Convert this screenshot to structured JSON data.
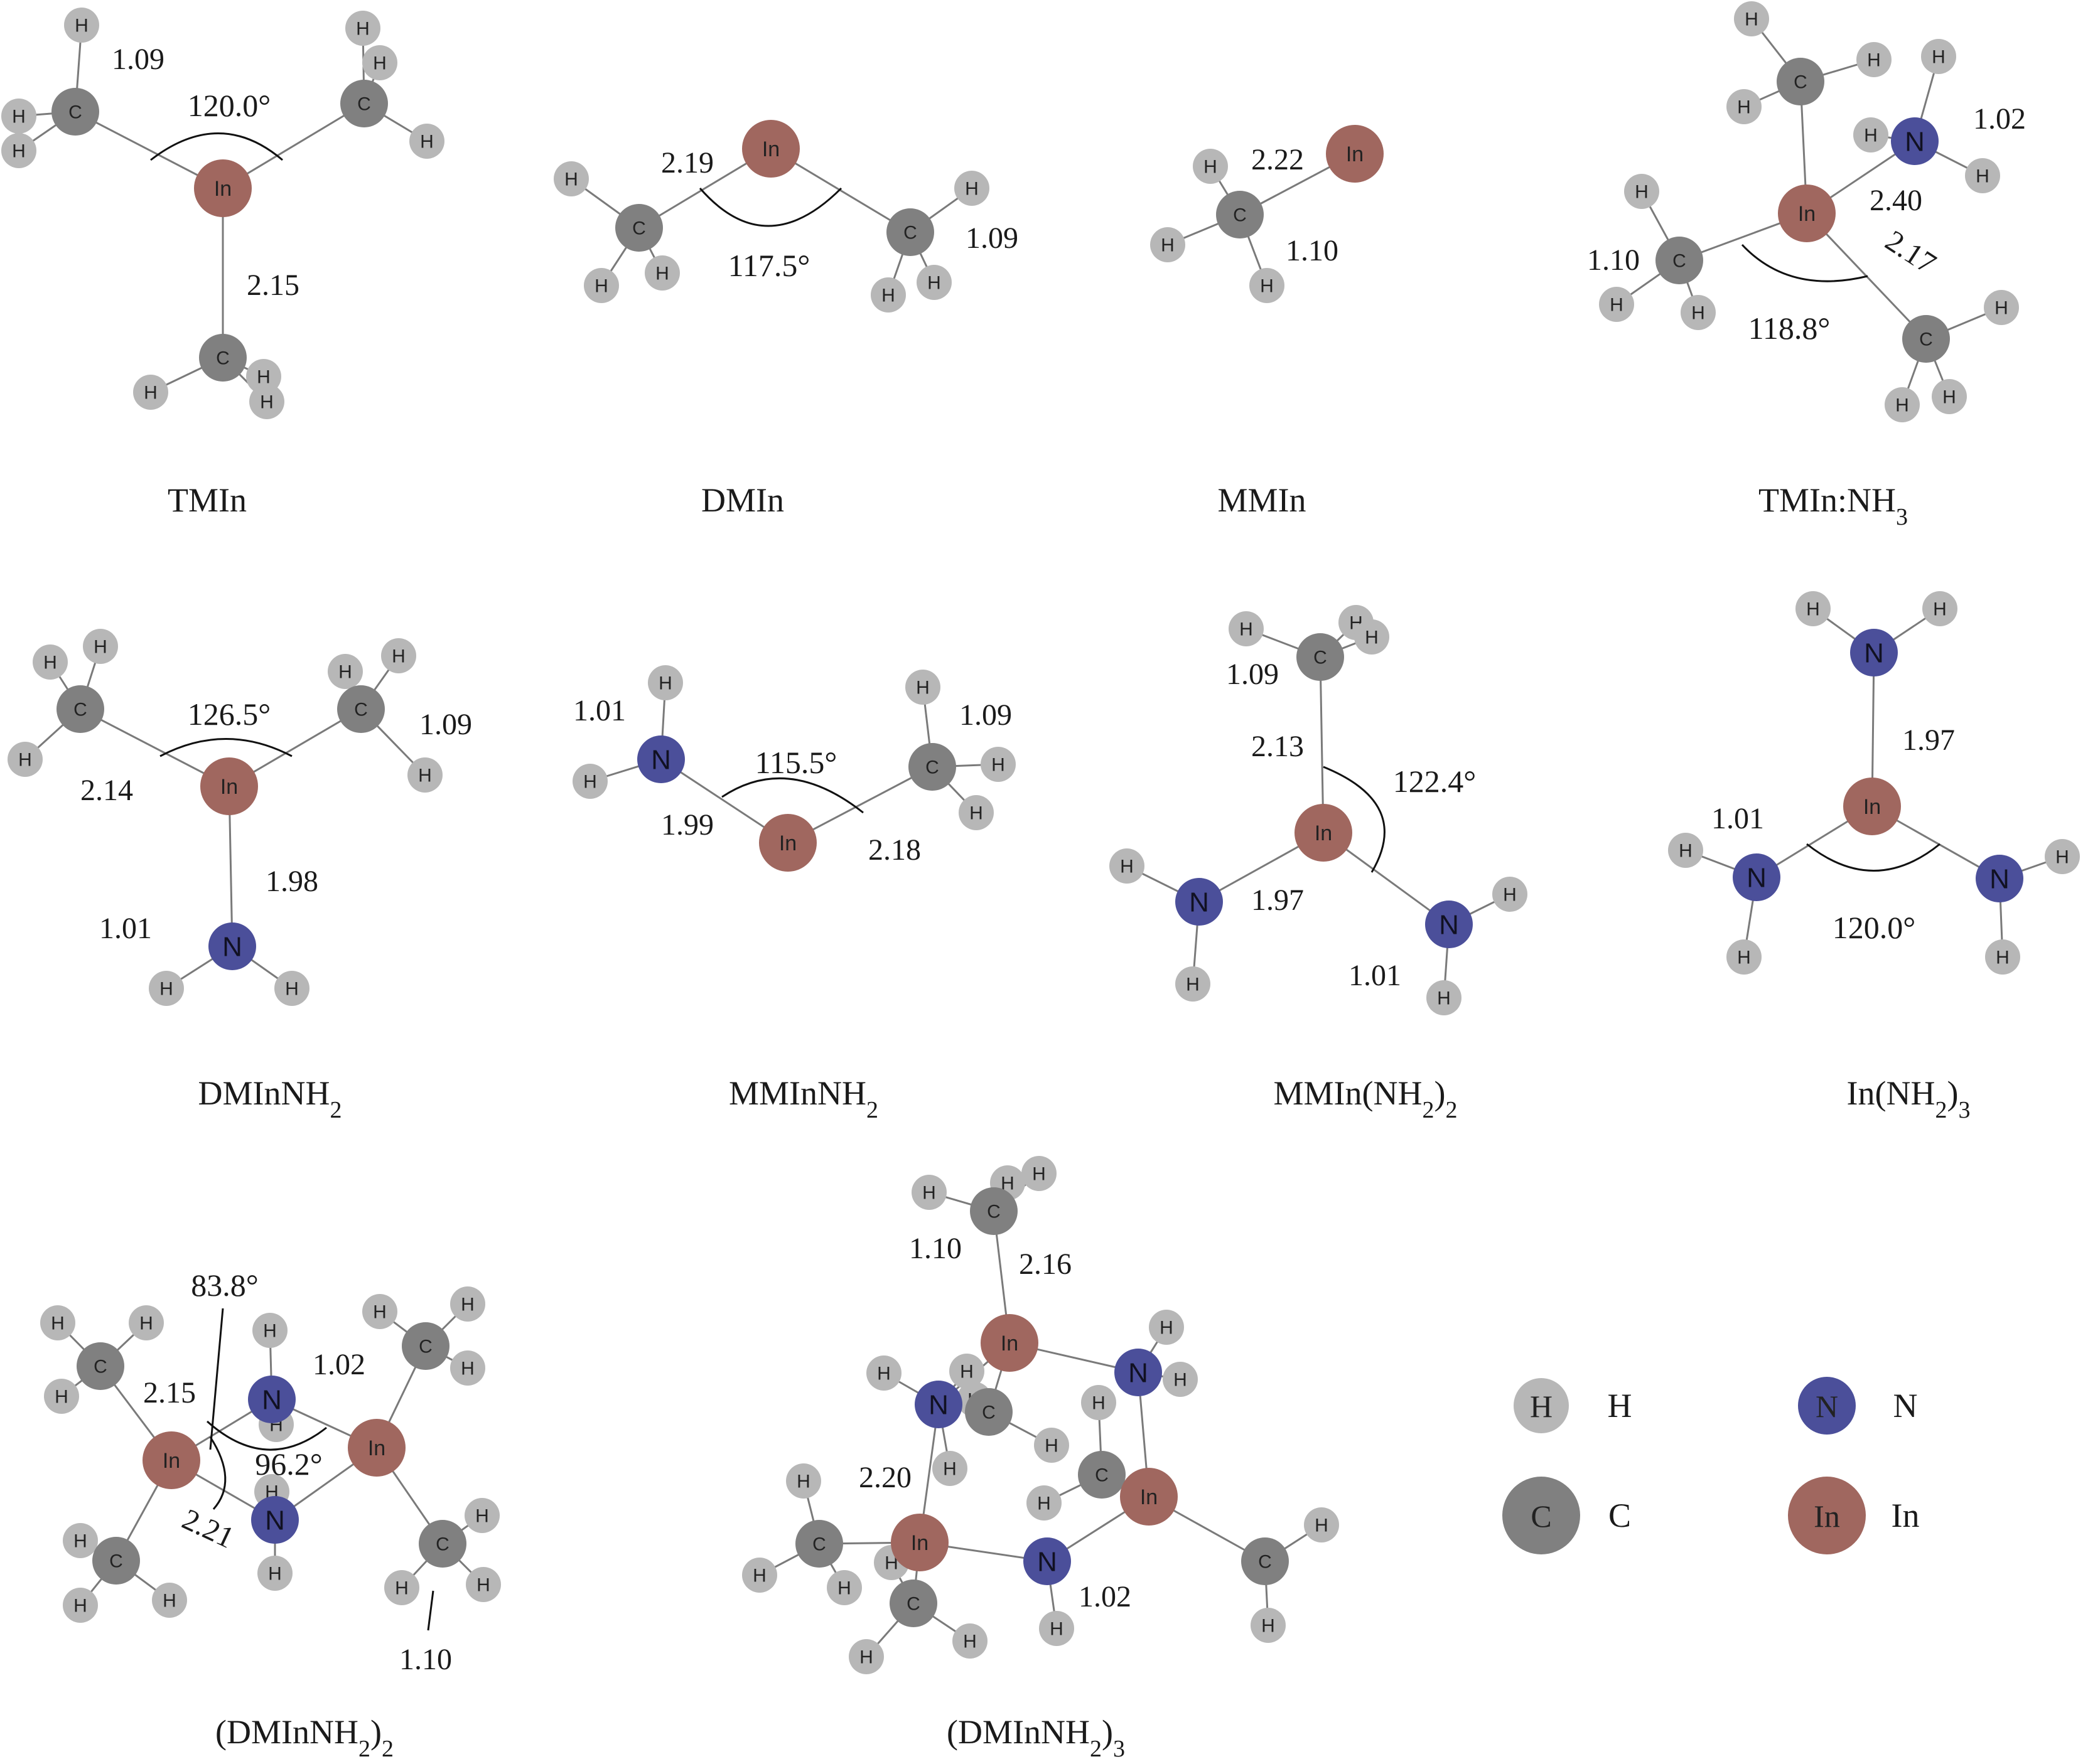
{
  "colors": {
    "H": "#b7b7b7",
    "C": "#808080",
    "N": "#4b4f9a",
    "In": "#a0675f",
    "bond": "#7a7a7a",
    "text": "#1a1a1a"
  },
  "element_symbols": {
    "H": "H",
    "C": "C",
    "N": "N",
    "In": "In"
  },
  "molecules": [
    {
      "id": "tmin",
      "name": "TMIn",
      "name_sub": "",
      "name_suffix": "",
      "name_sub2": "",
      "lengths": [
        "1.09",
        "2.15"
      ],
      "angles": [
        "120.0°"
      ]
    },
    {
      "id": "dmin",
      "name": "DMIn",
      "name_sub": "",
      "name_suffix": "",
      "name_sub2": "",
      "lengths": [
        "2.19",
        "1.09"
      ],
      "angles": [
        "117.5°"
      ]
    },
    {
      "id": "mmin",
      "name": "MMIn",
      "name_sub": "",
      "name_suffix": "",
      "name_sub2": "",
      "lengths": [
        "2.22",
        "1.10"
      ],
      "angles": []
    },
    {
      "id": "tmin-nh3",
      "name": "TMIn:NH",
      "name_sub": "3",
      "name_suffix": "",
      "name_sub2": "",
      "lengths": [
        "1.02",
        "2.40",
        "2.17",
        "1.10"
      ],
      "angles": [
        "118.8°"
      ]
    },
    {
      "id": "dminnh2",
      "name": "DMInNH",
      "name_sub": "2",
      "name_suffix": "",
      "name_sub2": "",
      "lengths": [
        "1.09",
        "2.14",
        "1.98",
        "1.01"
      ],
      "angles": [
        "126.5°"
      ]
    },
    {
      "id": "mminnh2",
      "name": "MMInNH",
      "name_sub": "2",
      "name_suffix": "",
      "name_sub2": "",
      "lengths": [
        "1.01",
        "1.09",
        "1.99",
        "2.18"
      ],
      "angles": [
        "115.5°"
      ]
    },
    {
      "id": "mmin-nh2-2",
      "name": "MMIn(NH",
      "name_sub": "2",
      "name_suffix": ")",
      "name_sub2": "2",
      "lengths": [
        "1.09",
        "2.13",
        "1.97",
        "1.01"
      ],
      "angles": [
        "122.4°"
      ]
    },
    {
      "id": "in-nh2-3",
      "name": "In(NH",
      "name_sub": "2",
      "name_suffix": ")",
      "name_sub2": "3",
      "lengths": [
        "1.97",
        "1.01"
      ],
      "angles": [
        "120.0°"
      ]
    },
    {
      "id": "dminnh2-dimer",
      "name": "(DMInNH",
      "name_sub": "2",
      "name_suffix": ")",
      "name_sub2": "2",
      "lengths": [
        "2.15",
        "1.02",
        "2.21",
        "1.10"
      ],
      "angles": [
        "83.8°",
        "96.2°"
      ]
    },
    {
      "id": "dminnh2-trimer",
      "name": "(DMInNH",
      "name_sub": "2",
      "name_suffix": ")",
      "name_sub2": "3",
      "lengths": [
        "1.10",
        "2.16",
        "2.20",
        "1.02"
      ],
      "angles": []
    }
  ],
  "legend": [
    {
      "element": "H",
      "label": "H"
    },
    {
      "element": "N",
      "label": "N"
    },
    {
      "element": "C",
      "label": "C"
    },
    {
      "element": "In",
      "label": "In"
    }
  ]
}
